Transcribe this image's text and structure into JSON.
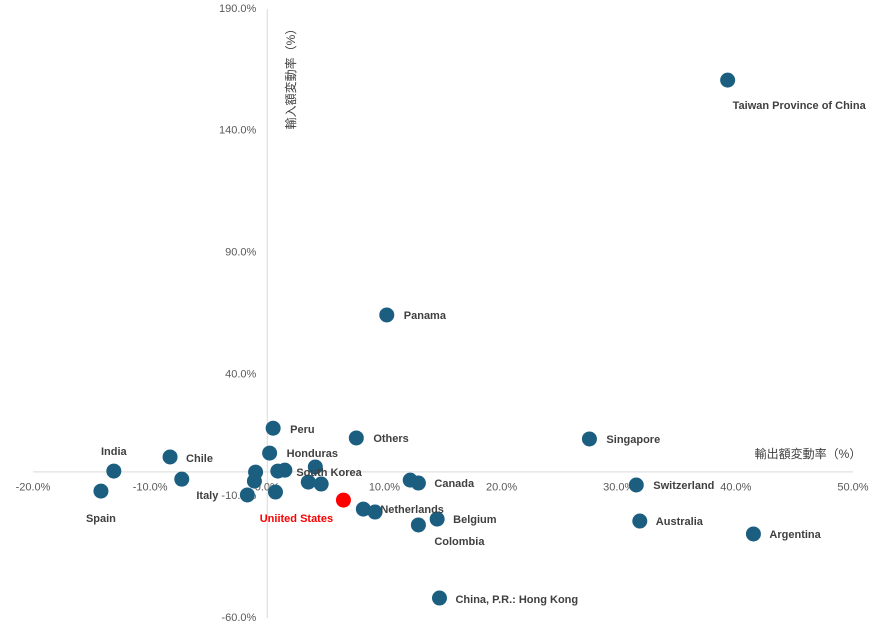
{
  "chart_data": {
    "type": "scatter",
    "x_label": "輸出額変動率（%）",
    "y_label": "輸入額変動率（%）",
    "x": [
      39.3,
      10.2,
      0.5,
      7.6,
      27.5,
      0.2,
      -8.3,
      -13.1,
      4.1,
      12.9,
      31.5,
      -1.7,
      -14.2,
      6.5,
      8.2,
      14.5,
      12.9,
      31.8,
      41.5,
      14.7,
      -7.3,
      -1.0,
      -1.1,
      0.9,
      1.5,
      0.7,
      3.5,
      4.6,
      9.2,
      12.2
    ],
    "values": [
      160.8,
      64.4,
      17.9,
      13.9,
      13.5,
      7.7,
      6.1,
      0.3,
      2.0,
      -4.6,
      -5.4,
      -9.5,
      -7.9,
      -11.6,
      -15.3,
      -19.4,
      -21.8,
      -20.2,
      -25.5,
      -51.8,
      -3.0,
      -0.1,
      -3.8,
      0.3,
      0.7,
      -8.3,
      -4.2,
      -5.0,
      -16.5,
      -3.4
    ],
    "point_labels": [
      "Taiwan Province of China",
      "Panama",
      "Peru",
      "Others",
      "Singapore",
      "Honduras",
      "Chile",
      "India",
      "South Korea",
      "Canada",
      "Switzerland",
      "Italy",
      "Spain",
      "Uniited States",
      "Netherlands",
      "Belgium",
      "Colombia",
      "Australia",
      "Argentina",
      "China, P.R.: Hong Kong",
      null,
      null,
      null,
      null,
      null,
      null,
      null,
      null,
      null,
      null
    ],
    "colors": [
      "#1b5e80",
      "#1b5e80",
      "#1b5e80",
      "#1b5e80",
      "#1b5e80",
      "#1b5e80",
      "#1b5e80",
      "#1b5e80",
      "#1b5e80",
      "#1b5e80",
      "#1b5e80",
      "#1b5e80",
      "#1b5e80",
      "#ff0000",
      "#1b5e80",
      "#1b5e80",
      "#1b5e80",
      "#1b5e80",
      "#1b5e80",
      "#1b5e80",
      "#1b5e80",
      "#1b5e80",
      "#1b5e80",
      "#1b5e80",
      "#1b5e80",
      "#1b5e80",
      "#1b5e80",
      "#1b5e80",
      "#1b5e80",
      "#1b5e80"
    ],
    "xlim": [
      -20,
      50
    ],
    "ylim": [
      -60,
      190
    ],
    "xticks": [
      {
        "value": -20,
        "label": "-20.0%"
      },
      {
        "value": -10,
        "label": "-10.0%"
      },
      {
        "value": 0,
        "label": "0.0%"
      },
      {
        "value": 10,
        "label": "10.0%"
      },
      {
        "value": 20,
        "label": "20.0%"
      },
      {
        "value": 30,
        "label": "30.0%"
      },
      {
        "value": 40,
        "label": "40.0%"
      },
      {
        "value": 50,
        "label": "50.0%"
      }
    ],
    "yticks": [
      {
        "value": -60,
        "label": "-60.0%"
      },
      {
        "value": -10,
        "label": "-10.0%"
      },
      {
        "value": 40,
        "label": "40.0%"
      },
      {
        "value": 90,
        "label": "90.0%"
      },
      {
        "value": 140,
        "label": "140.0%"
      },
      {
        "value": 190,
        "label": "190.0%"
      }
    ],
    "grid": false
  }
}
